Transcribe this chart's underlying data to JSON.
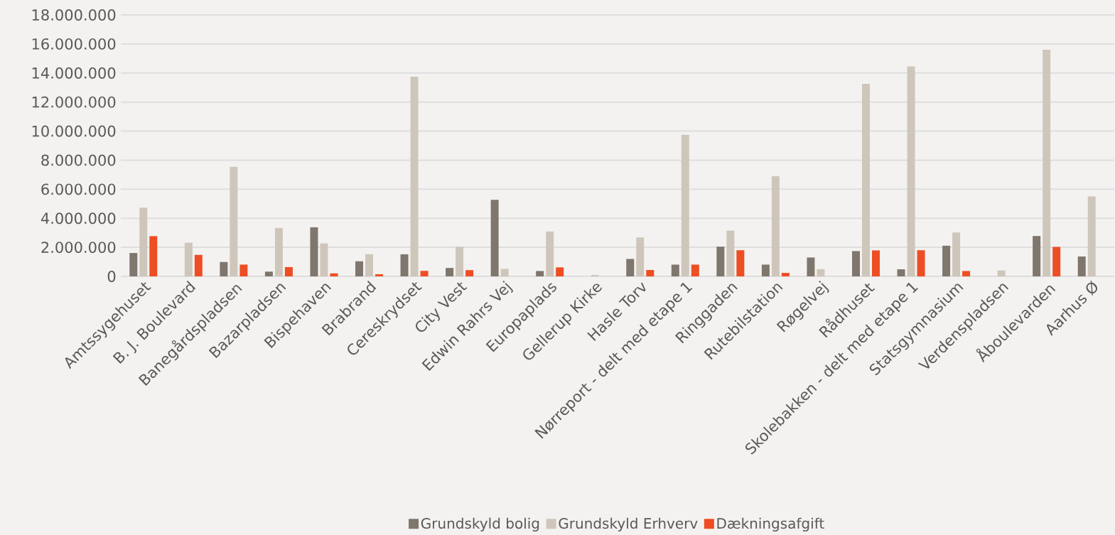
{
  "chart_data": {
    "type": "bar",
    "categories": [
      "Amtssygehuset",
      "B. J. Boulevard",
      "Banegårdspladsen",
      "Bazarpladsen",
      "Bispehaven",
      "Brabrand",
      "Cereskrydset",
      "City Vest",
      "Edwin Rahrs Vej",
      "Europaplads",
      "Gellerup Kirke",
      "Hasle Torv",
      "Nørreport - delt med etape 1",
      "Ringgaden",
      "Rutebilstation",
      "Røgelvej",
      "Rådhuset",
      "Skolebakken - delt med etape 1",
      "Statsgymnasium",
      "Verdenspladsen",
      "Åboulevarden",
      "Aarhus Ø"
    ],
    "series": [
      {
        "name": "Grundskyld bolig",
        "color": "#7f766e",
        "values": [
          1610000,
          null,
          990000,
          330000,
          3380000,
          1040000,
          1520000,
          580000,
          5270000,
          370000,
          null,
          1200000,
          810000,
          2050000,
          810000,
          1300000,
          1740000,
          490000,
          2110000,
          null,
          2780000,
          1370000
        ]
      },
      {
        "name": "Grundskyld Erhverv",
        "color": "#cfc6bb",
        "values": [
          4730000,
          2320000,
          7550000,
          3340000,
          2270000,
          1530000,
          13750000,
          2040000,
          520000,
          3090000,
          100000,
          2680000,
          9750000,
          3150000,
          6900000,
          500000,
          13250000,
          14450000,
          3020000,
          410000,
          15600000,
          5500000
        ]
      },
      {
        "name": "Dækningsafgift",
        "color": "#ee4e23",
        "values": [
          2770000,
          1480000,
          810000,
          640000,
          210000,
          150000,
          380000,
          430000,
          null,
          620000,
          null,
          440000,
          810000,
          1800000,
          240000,
          null,
          1790000,
          1800000,
          370000,
          null,
          2030000,
          null
        ]
      }
    ],
    "ylim": [
      0,
      18000000
    ],
    "yticks": [
      {
        "value": 0,
        "label": "0"
      },
      {
        "value": 2000000,
        "label": "2.000.000"
      },
      {
        "value": 4000000,
        "label": "4.000.000"
      },
      {
        "value": 6000000,
        "label": "6.000.000"
      },
      {
        "value": 8000000,
        "label": "8.000.000"
      },
      {
        "value": 10000000,
        "label": "10.000.000"
      },
      {
        "value": 12000000,
        "label": "12.000.000"
      },
      {
        "value": 14000000,
        "label": "14.000.000"
      },
      {
        "value": 16000000,
        "label": "16.000.000"
      },
      {
        "value": 18000000,
        "label": "18.000.000"
      }
    ],
    "grid": "y",
    "legend": "bottom"
  }
}
